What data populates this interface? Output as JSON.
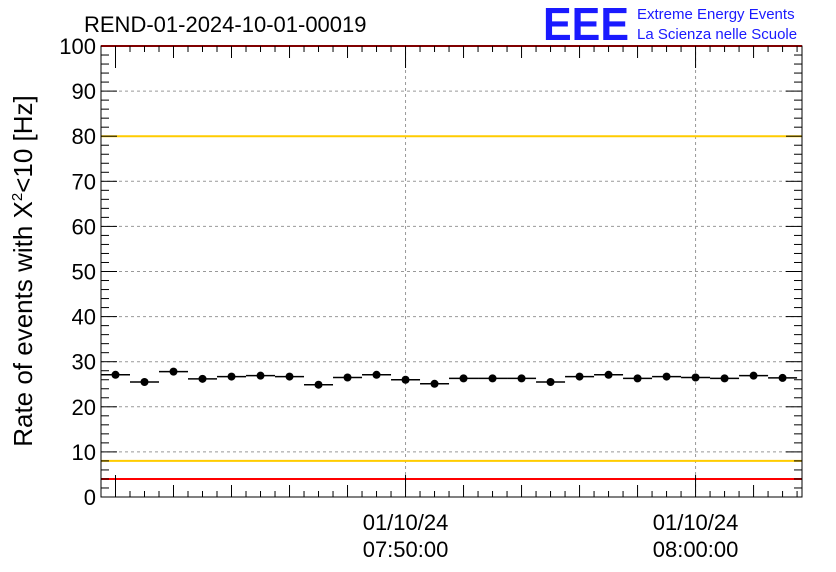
{
  "logo": {
    "letters": "EEE",
    "line1": "Extreme Energy Events",
    "line2": "La Scienza nelle Scuole",
    "color": "#1a1aff"
  },
  "chart_data": {
    "type": "scatter",
    "title": "REND-01-2024-10-01-00019",
    "ylabel": {
      "prefix": "Rate of events with ",
      "symbol": "X",
      "superscript": "2",
      "suffix": "<10 [Hz]"
    },
    "xlabel": "",
    "ylim": [
      0,
      100
    ],
    "yticks": [
      0,
      10,
      20,
      30,
      40,
      50,
      60,
      70,
      80,
      90,
      100
    ],
    "x_unit": "minutes after 07:40:00 on 01/10/24",
    "xlim": [
      -0.5,
      23.67
    ],
    "xticks": [
      {
        "x": 10,
        "date": "01/10/24",
        "time": "07:50:00"
      },
      {
        "x": 20,
        "date": "01/10/24",
        "time": "08:00:00"
      }
    ],
    "bin_width_minutes": 1,
    "x": [
      0,
      1,
      2,
      3,
      4,
      5,
      6,
      7,
      8,
      9,
      10,
      11,
      12,
      13,
      14,
      15,
      16,
      17,
      18,
      19,
      20,
      21,
      22,
      23
    ],
    "values": [
      27.1,
      25.5,
      27.8,
      26.2,
      26.7,
      26.9,
      26.7,
      24.9,
      26.5,
      27.1,
      26.0,
      25.1,
      26.3,
      26.3,
      26.3,
      25.5,
      26.7,
      27.1,
      26.3,
      26.7,
      26.5,
      26.3,
      26.9,
      26.4
    ],
    "grid": true,
    "threshold_lines": [
      {
        "value": 100,
        "color": "#ff0000"
      },
      {
        "value": 80,
        "color": "#ffcc00"
      },
      {
        "value": 8,
        "color": "#ffcc00"
      },
      {
        "value": 4,
        "color": "#ff0000"
      }
    ],
    "marker_color": "#000000"
  }
}
